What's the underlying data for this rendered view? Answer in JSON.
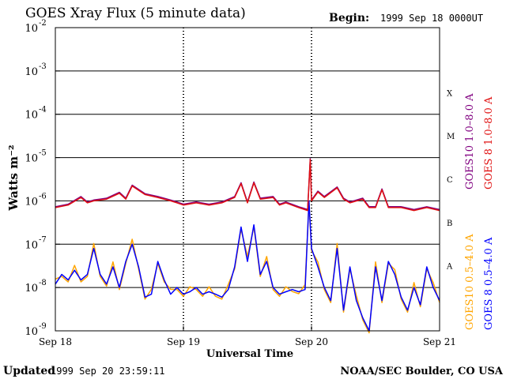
{
  "chart_data": {
    "type": "line",
    "title": "GOES Xray Flux (5 minute data)",
    "begin_label": "Begin:",
    "begin_value": "1999 Sep 18 0000UT",
    "xlabel": "Universal Time",
    "ylabel": "Watts m⁻²",
    "yscale": "log",
    "ylim": [
      1e-09,
      0.01
    ],
    "y_ticks": [
      {
        "base": "10",
        "exp": "-9"
      },
      {
        "base": "10",
        "exp": "-8"
      },
      {
        "base": "10",
        "exp": "-7"
      },
      {
        "base": "10",
        "exp": "-6"
      },
      {
        "base": "10",
        "exp": "-5"
      },
      {
        "base": "10",
        "exp": "-4"
      },
      {
        "base": "10",
        "exp": "-3"
      },
      {
        "base": "10",
        "exp": "-2"
      }
    ],
    "x_ticks": [
      "Sep 18",
      "Sep 19",
      "Sep 20",
      "Sep 21"
    ],
    "xlim": [
      "1999-09-18 00:00",
      "1999-09-21 00:00"
    ],
    "flare_classes": [
      {
        "label": "A",
        "min": 1e-08
      },
      {
        "label": "B",
        "min": 1e-07
      },
      {
        "label": "C",
        "min": 1e-06
      },
      {
        "label": "M",
        "min": 1e-05
      },
      {
        "label": "X",
        "min": 0.0001
      }
    ],
    "grid": "horizontal lines at each decade from 1e-8 to 1e-3",
    "legend_placement": "right, vertical",
    "series": [
      {
        "name": "GOES10 1.0–8.0 A",
        "color": "#800080"
      },
      {
        "name": "GOES 8 1.0–8.0 A",
        "color": "#e01010"
      },
      {
        "name": "GOES10 0.5–4.0 A",
        "color": "#ffa500"
      },
      {
        "name": "GOES 8 0.5–4.0 A",
        "color": "#0000ff"
      }
    ],
    "series_values": {
      "long": {
        "x_days": [
          0.0,
          0.1,
          0.2,
          0.25,
          0.3,
          0.4,
          0.5,
          0.55,
          0.6,
          0.7,
          0.8,
          0.9,
          0.95,
          1.0,
          1.1,
          1.2,
          1.3,
          1.4,
          1.45,
          1.5,
          1.55,
          1.6,
          1.7,
          1.75,
          1.8,
          1.9,
          1.97,
          1.99,
          2.0,
          2.05,
          2.1,
          2.2,
          2.25,
          2.3,
          2.4,
          2.45,
          2.5,
          2.55,
          2.6,
          2.7,
          2.8,
          2.9,
          3.0
        ],
        "y": [
          7e-07,
          8e-07,
          1.2e-06,
          9e-07,
          1e-06,
          1.1e-06,
          1.5e-06,
          1.1e-06,
          2.2e-06,
          1.4e-06,
          1.2e-06,
          1e-06,
          9e-07,
          8e-07,
          9e-07,
          8e-07,
          9e-07,
          1.2e-06,
          2.5e-06,
          9e-07,
          2.6e-06,
          1.1e-06,
          1.2e-06,
          8e-07,
          9e-07,
          7e-07,
          6e-07,
          9e-06,
          1e-06,
          1.6e-06,
          1.2e-06,
          2e-06,
          1.1e-06,
          9e-07,
          1.1e-06,
          7e-07,
          7e-07,
          1.8e-06,
          7e-07,
          7e-07,
          6e-07,
          7e-07,
          6e-07
        ]
      },
      "short": {
        "x_days": [
          0.0,
          0.05,
          0.1,
          0.15,
          0.2,
          0.25,
          0.3,
          0.35,
          0.4,
          0.45,
          0.5,
          0.55,
          0.6,
          0.65,
          0.7,
          0.75,
          0.8,
          0.85,
          0.9,
          0.95,
          1.0,
          1.05,
          1.1,
          1.15,
          1.2,
          1.25,
          1.3,
          1.35,
          1.4,
          1.45,
          1.5,
          1.55,
          1.6,
          1.65,
          1.7,
          1.75,
          1.8,
          1.85,
          1.9,
          1.95,
          1.98,
          2.0,
          2.05,
          2.1,
          2.15,
          2.2,
          2.25,
          2.3,
          2.35,
          2.4,
          2.45,
          2.5,
          2.55,
          2.6,
          2.65,
          2.7,
          2.75,
          2.8,
          2.85,
          2.9,
          2.95,
          3.0
        ],
        "y": [
          1.2e-08,
          2e-08,
          1.5e-08,
          2.5e-08,
          1.5e-08,
          2e-08,
          8e-08,
          2e-08,
          1.2e-08,
          3e-08,
          1e-08,
          4e-08,
          1e-07,
          3e-08,
          6e-09,
          7e-09,
          4e-08,
          1.5e-08,
          7e-09,
          1e-08,
          7e-09,
          8e-09,
          1e-08,
          7e-09,
          8e-09,
          7e-09,
          6e-09,
          9e-09,
          3e-08,
          2.5e-07,
          4e-08,
          2.8e-07,
          2e-08,
          4e-08,
          1e-08,
          7e-09,
          8e-09,
          9e-09,
          8e-09,
          9e-09,
          1e-06,
          8e-08,
          3e-08,
          1e-08,
          5e-09,
          8e-08,
          3e-09,
          3e-08,
          5e-09,
          2e-09,
          1e-09,
          3e-08,
          5e-09,
          4e-08,
          2e-08,
          6e-09,
          3e-09,
          1e-08,
          4e-09,
          3e-08,
          1e-08,
          5e-09
        ]
      }
    }
  },
  "footer": {
    "updated_label": "Updated",
    "updated_value": "1999 Sep 20 23:59:11",
    "credit": "NOAA/SEC Boulder, CO USA"
  }
}
